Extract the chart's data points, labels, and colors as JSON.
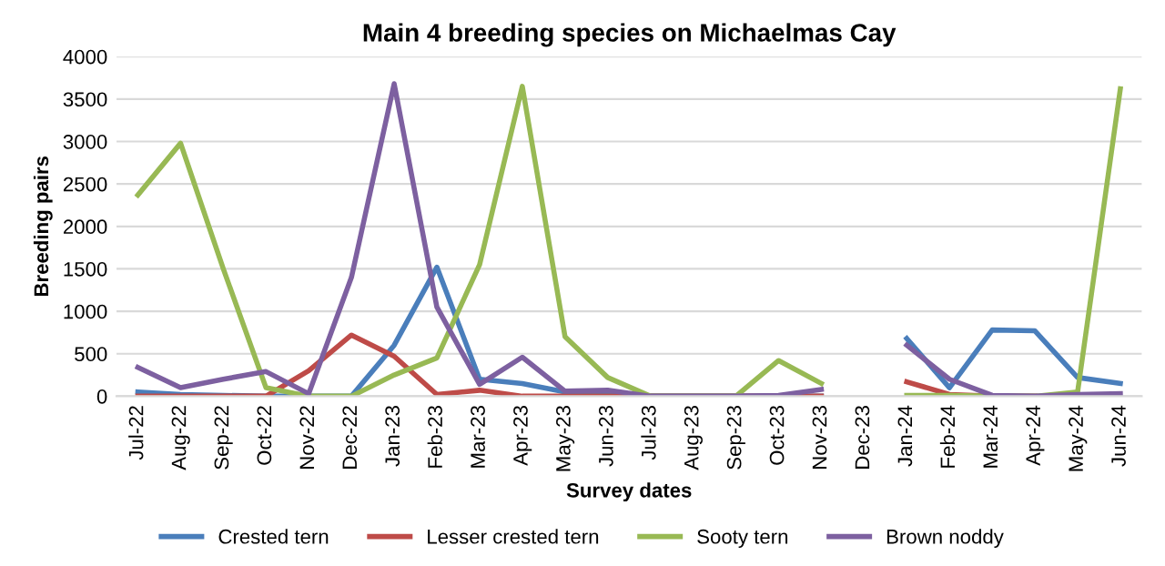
{
  "chart_data": {
    "type": "line",
    "title": "Main 4 breeding species on Michaelmas Cay",
    "xlabel": "Survey dates",
    "ylabel": "Breeding pairs",
    "categories": [
      "Jul-22",
      "Aug-22",
      "Sep-22",
      "Oct-22",
      "Nov-22",
      "Dec-22",
      "Jan-23",
      "Feb-23",
      "Mar-23",
      "Apr-23",
      "May-23",
      "Jun-23",
      "Jul-23",
      "Aug-23",
      "Sep-23",
      "Oct-23",
      "Nov-23",
      "Dec-23",
      "Jan-24",
      "Feb-24",
      "Mar-24",
      "Apr-24",
      "May-24",
      "Jun-24"
    ],
    "series": [
      {
        "name": "Crested tern",
        "color": "#4a7ebb",
        "values": [
          50,
          20,
          10,
          0,
          0,
          0,
          600,
          1520,
          200,
          150,
          50,
          40,
          0,
          0,
          0,
          0,
          0,
          null,
          680,
          100,
          780,
          770,
          220,
          150
        ]
      },
      {
        "name": "Lesser crested tern",
        "color": "#be4b48",
        "values": [
          0,
          0,
          0,
          0,
          300,
          720,
          470,
          20,
          70,
          0,
          0,
          0,
          0,
          0,
          0,
          0,
          0,
          null,
          170,
          20,
          0,
          0,
          null,
          null
        ]
      },
      {
        "name": "Sooty tern",
        "color": "#98b954",
        "values": [
          2370,
          2980,
          1500,
          100,
          0,
          0,
          250,
          450,
          1550,
          3650,
          700,
          220,
          0,
          0,
          0,
          420,
          150,
          null,
          10,
          10,
          0,
          0,
          50,
          3620
        ]
      },
      {
        "name": "Brown noddy",
        "color": "#7d60a0",
        "values": [
          340,
          100,
          200,
          290,
          30,
          1400,
          3680,
          1050,
          140,
          460,
          60,
          70,
          0,
          0,
          0,
          10,
          80,
          null,
          600,
          200,
          10,
          0,
          20,
          30
        ]
      }
    ],
    "ylim": [
      0,
      4000
    ],
    "yticks": [
      0,
      500,
      1000,
      1500,
      2000,
      2500,
      3000,
      3500,
      4000
    ],
    "grid": "y",
    "legend": "bottom",
    "line_style": "solid",
    "marker": "none"
  }
}
